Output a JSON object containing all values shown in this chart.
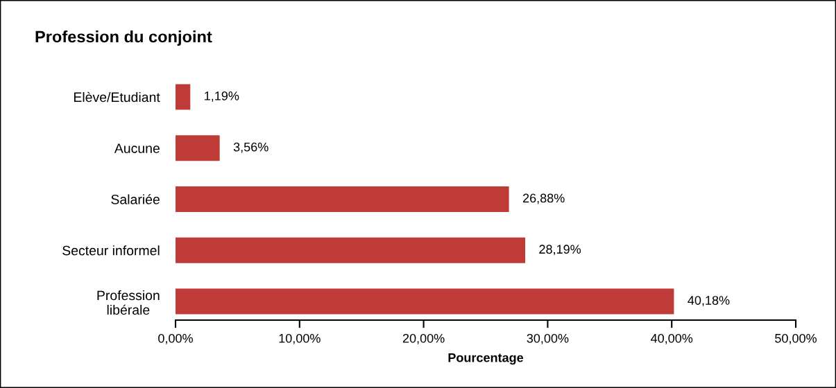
{
  "chart_data": {
    "type": "bar",
    "orientation": "horizontal",
    "title": "Profession du conjoint",
    "xlabel": "Pourcentage",
    "categories": [
      "Elève/Etudiant",
      "Aucune",
      "Salariée",
      "Secteur informel",
      "Profession\nlibérale"
    ],
    "values": [
      1.19,
      3.56,
      26.88,
      28.19,
      40.18
    ],
    "value_labels": [
      "1,19%",
      "3,56%",
      "26,88%",
      "28,19%",
      "40,18%"
    ],
    "color": "#bf3b38",
    "xlim": [
      0,
      50
    ],
    "xticks": [
      {
        "value": 0,
        "label": "0,00%"
      },
      {
        "value": 10,
        "label": "10,00%"
      },
      {
        "value": 20,
        "label": "20,00%"
      },
      {
        "value": 30,
        "label": "30,00%"
      },
      {
        "value": 40,
        "label": "40,00%"
      },
      {
        "value": 50,
        "label": "50,00%"
      }
    ],
    "grid": false,
    "legend": false
  }
}
